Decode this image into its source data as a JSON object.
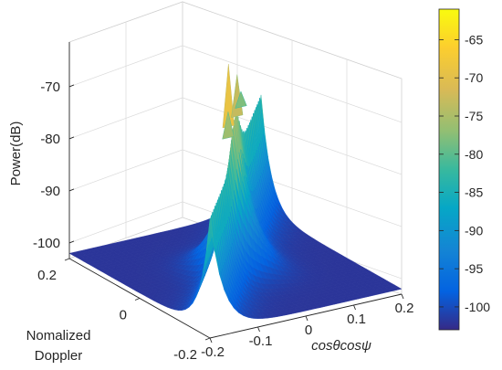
{
  "chart_data": {
    "type": "surface",
    "zlabel": "Power(dB)",
    "ylabel_lines": [
      "Nomalized",
      "Doppler"
    ],
    "xlabel": "cosθcosψ",
    "z_ticks": [
      "-70",
      "-80",
      "-90",
      "-100"
    ],
    "z_tick_values": [
      -70,
      -80,
      -90,
      -100
    ],
    "doppler_ticks": [
      "0.2",
      "0",
      "-0.2"
    ],
    "doppler_tick_values": [
      0.2,
      0,
      -0.2
    ],
    "angle_ticks": [
      "-0.2",
      "-0.1",
      "0",
      "0.1",
      "0.2"
    ],
    "angle_tick_values": [
      -0.2,
      -0.1,
      0,
      0.1,
      0.2
    ],
    "zlim": [
      -103,
      -60
    ],
    "doppler_range": [
      -0.2,
      0.2
    ],
    "angle_range": [
      -0.2,
      0.2
    ],
    "grid": true,
    "floor_level_db": -102,
    "ridge": {
      "description_values": "clutter ridge along cosθcosψ ≈ normalized Doppler",
      "peak_db": -63,
      "secondary_peaks_db": [
        -67,
        -70,
        -72
      ]
    },
    "colorbar": {
      "colormap": "parula",
      "range": [
        -103,
        -61
      ],
      "ticks": [
        "-65",
        "-70",
        "-75",
        "-80",
        "-85",
        "-90",
        "-95",
        "-100"
      ],
      "tick_values": [
        -65,
        -70,
        -75,
        -80,
        -85,
        -90,
        -95,
        -100
      ]
    }
  }
}
